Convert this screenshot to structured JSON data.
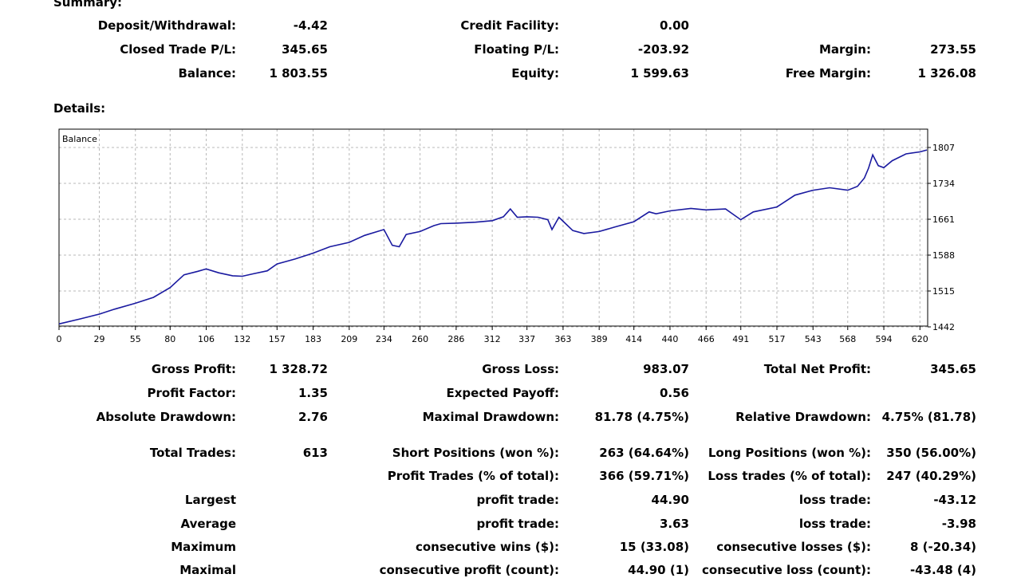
{
  "summary": {
    "title": "Summary:",
    "deposit_withdrawal": {
      "label": "Deposit/Withdrawal:",
      "value": "-4.42"
    },
    "credit_facility": {
      "label": "Credit Facility:",
      "value": "0.00"
    },
    "closed_trade_pl": {
      "label": "Closed Trade P/L:",
      "value": "345.65"
    },
    "floating_pl": {
      "label": "Floating P/L:",
      "value": "-203.92"
    },
    "margin": {
      "label": "Margin:",
      "value": "273.55"
    },
    "balance": {
      "label": "Balance:",
      "value": "1 803.55"
    },
    "equity": {
      "label": "Equity:",
      "value": "1 599.63"
    },
    "free_margin": {
      "label": "Free Margin:",
      "value": "1 326.08"
    }
  },
  "details": {
    "title": "Details:",
    "rows": [
      [
        [
          "Gross Profit:",
          "1 328.72"
        ],
        [
          "Gross Loss:",
          "983.07"
        ],
        [
          "Total Net Profit:",
          "345.65"
        ]
      ],
      [
        [
          "Profit Factor:",
          "1.35"
        ],
        [
          "Expected Payoff:",
          "0.56"
        ],
        [
          "",
          ""
        ]
      ],
      [
        [
          "Absolute Drawdown:",
          "2.76"
        ],
        [
          "Maximal Drawdown:",
          "81.78 (4.75%)"
        ],
        [
          "Relative Drawdown:",
          "4.75% (81.78)"
        ]
      ],
      [
        [
          "Total Trades:",
          "613"
        ],
        [
          "Short Positions (won %):",
          "263 (64.64%)"
        ],
        [
          "Long Positions (won %):",
          "350 (56.00%)"
        ]
      ],
      [
        [
          "",
          ""
        ],
        [
          "Profit Trades (% of total):",
          "366 (59.71%)"
        ],
        [
          "Loss trades (% of total):",
          "247 (40.29%)"
        ]
      ],
      [
        [
          "Largest",
          ""
        ],
        [
          "profit trade:",
          "44.90"
        ],
        [
          "loss trade:",
          "-43.12"
        ]
      ],
      [
        [
          "Average",
          ""
        ],
        [
          "profit trade:",
          "3.63"
        ],
        [
          "loss trade:",
          "-3.98"
        ]
      ],
      [
        [
          "Maximum",
          ""
        ],
        [
          "consecutive wins ($):",
          "15 (33.08)"
        ],
        [
          "consecutive losses ($):",
          "8 (-20.34)"
        ]
      ],
      [
        [
          "Maximal",
          ""
        ],
        [
          "consecutive profit (count):",
          "44.90 (1)"
        ],
        [
          "consecutive loss (count):",
          "-43.48 (4)"
        ]
      ]
    ]
  },
  "chart_data": {
    "type": "line",
    "legend_label": "Balance",
    "line_color": "#1a1aa0",
    "grid": true,
    "xlim": [
      0,
      625
    ],
    "ylim": [
      1442,
      1807
    ],
    "x_ticks": [
      "0",
      "29",
      "55",
      "80",
      "106",
      "132",
      "157",
      "183",
      "209",
      "234",
      "260",
      "286",
      "312",
      "337",
      "363",
      "389",
      "414",
      "440",
      "466",
      "491",
      "517",
      "543",
      "568",
      "594",
      "620"
    ],
    "y_ticks": [
      "1807",
      "1734",
      "1661",
      "1588",
      "1515",
      "1442"
    ],
    "series": [
      {
        "name": "Balance",
        "x": [
          0,
          15,
          29,
          40,
          55,
          68,
          80,
          90,
          100,
          106,
          115,
          125,
          132,
          140,
          150,
          157,
          170,
          183,
          195,
          209,
          220,
          234,
          240,
          245,
          250,
          260,
          270,
          275,
          286,
          300,
          312,
          320,
          325,
          330,
          337,
          345,
          352,
          355,
          360,
          363,
          370,
          378,
          389,
          400,
          414,
          425,
          430,
          440,
          455,
          466,
          480,
          491,
          500,
          517,
          530,
          543,
          555,
          568,
          575,
          580,
          583,
          586,
          590,
          594,
          600,
          610,
          620,
          625
        ],
        "y": [
          1448,
          1458,
          1468,
          1478,
          1490,
          1502,
          1522,
          1548,
          1555,
          1560,
          1552,
          1546,
          1545,
          1550,
          1556,
          1570,
          1580,
          1592,
          1605,
          1614,
          1628,
          1640,
          1608,
          1605,
          1630,
          1636,
          1648,
          1652,
          1653,
          1655,
          1658,
          1666,
          1682,
          1665,
          1666,
          1665,
          1660,
          1640,
          1665,
          1657,
          1638,
          1632,
          1636,
          1645,
          1656,
          1676,
          1672,
          1678,
          1683,
          1680,
          1682,
          1660,
          1676,
          1686,
          1710,
          1720,
          1725,
          1720,
          1728,
          1745,
          1765,
          1792,
          1770,
          1766,
          1780,
          1794,
          1798,
          1802
        ]
      }
    ]
  }
}
